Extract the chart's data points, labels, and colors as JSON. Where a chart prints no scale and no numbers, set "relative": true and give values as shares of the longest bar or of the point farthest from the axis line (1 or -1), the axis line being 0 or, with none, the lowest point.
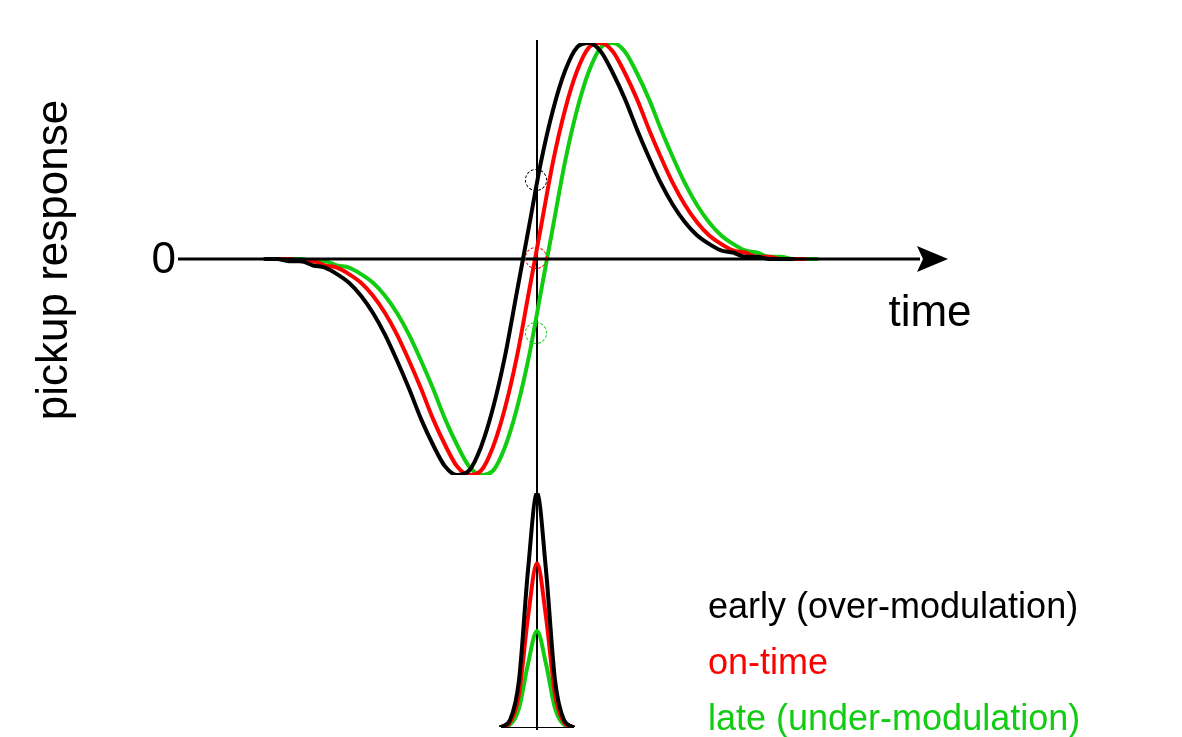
{
  "chart_data": [
    {
      "type": "line",
      "relative": true,
      "ylabel": "pickup response",
      "xlabel": "time",
      "annotations": [
        "0"
      ],
      "legend": "bottom right",
      "marker": "none",
      "categories": [
        null,
        null,
        null,
        null,
        null,
        null,
        null,
        null,
        null,
        null,
        null,
        null,
        null,
        null,
        null,
        null,
        null,
        null,
        null,
        null,
        null,
        null,
        null,
        null,
        null,
        null,
        null,
        null,
        null,
        null,
        null,
        null,
        null,
        null,
        null,
        null,
        null,
        null,
        null,
        null,
        null,
        null,
        null,
        null,
        null,
        null,
        null,
        null
      ],
      "series": [
        {
          "name": "early (over-modulation)",
          "color": "#000000",
          "values": [
            0,
            0,
            -0.01,
            -0.01,
            -0.03,
            -0.04,
            -0.07,
            -0.11,
            -0.17,
            -0.25,
            -0.35,
            -0.47,
            -0.6,
            -0.74,
            -0.86,
            -0.96,
            -1,
            -0.98,
            -0.87,
            -0.69,
            -0.45,
            -0.15,
            0.15,
            0.45,
            0.69,
            0.87,
            0.98,
            1,
            0.96,
            0.86,
            0.74,
            0.6,
            0.47,
            0.35,
            0.25,
            0.17,
            0.11,
            0.07,
            0.04,
            0.03,
            0.01,
            0.01,
            0,
            0,
            0,
            null,
            null,
            null
          ]
        },
        {
          "name": "on-time",
          "color": "#ff0000",
          "values": [
            null,
            0,
            0,
            -0.01,
            -0.01,
            -0.03,
            -0.04,
            -0.07,
            -0.11,
            -0.17,
            -0.25,
            -0.35,
            -0.47,
            -0.6,
            -0.74,
            -0.86,
            -0.96,
            -1,
            -0.98,
            -0.87,
            -0.69,
            -0.45,
            -0.15,
            0.15,
            0.45,
            0.69,
            0.87,
            0.98,
            1,
            0.96,
            0.86,
            0.74,
            0.6,
            0.47,
            0.35,
            0.25,
            0.17,
            0.11,
            0.07,
            0.04,
            0.03,
            0.01,
            0.01,
            0,
            0,
            0,
            null,
            null
          ]
        },
        {
          "name": "late (under-modulation)",
          "color": "#11cc11",
          "values": [
            null,
            null,
            0,
            0,
            -0.01,
            -0.01,
            -0.03,
            -0.04,
            -0.07,
            -0.11,
            -0.17,
            -0.25,
            -0.35,
            -0.47,
            -0.6,
            -0.74,
            -0.86,
            -0.96,
            -1,
            -0.98,
            -0.87,
            -0.69,
            -0.45,
            -0.15,
            0.15,
            0.45,
            0.69,
            0.87,
            0.98,
            1,
            0.96,
            0.86,
            0.74,
            0.6,
            0.47,
            0.35,
            0.25,
            0.17,
            0.11,
            0.07,
            0.04,
            0.03,
            0.01,
            0.01,
            0,
            0,
            0,
            null
          ]
        }
      ]
    },
    {
      "type": "line",
      "relative": true,
      "marker": "none",
      "categories": [
        null,
        null,
        null,
        null,
        null,
        null,
        null,
        null,
        null
      ],
      "series": [
        {
          "color": "#000000",
          "values": [
            0,
            0.03,
            0.2,
            0.67,
            1,
            0.67,
            0.2,
            0.03,
            0
          ]
        },
        {
          "color": "#ff0000",
          "values": [
            0,
            0.02,
            0.14,
            0.47,
            0.7,
            0.47,
            0.14,
            0.02,
            0
          ]
        },
        {
          "color": "#11cc11",
          "values": [
            0,
            0.01,
            0.08,
            0.27,
            0.41,
            0.27,
            0.08,
            0.01,
            0
          ]
        }
      ]
    }
  ]
}
